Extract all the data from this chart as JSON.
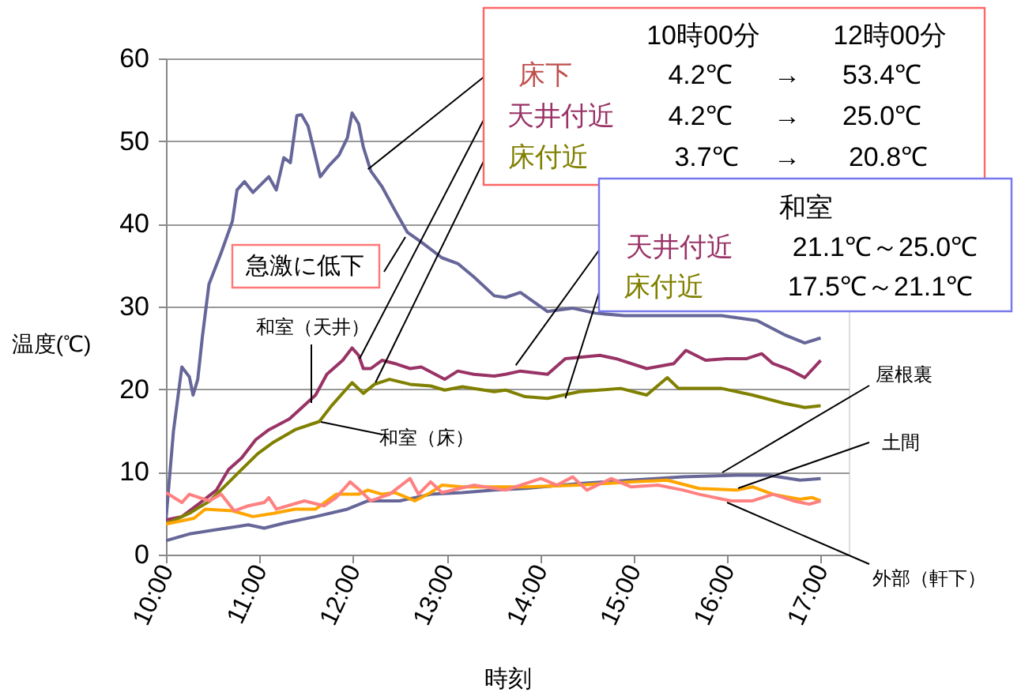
{
  "chart_data": {
    "type": "line",
    "xlabel": "時刻",
    "ylabel": "温度(℃)",
    "xlim": [
      10,
      17.3
    ],
    "ylim": [
      0,
      60
    ],
    "xticks": [
      {
        "value": 10,
        "label": "10:00"
      },
      {
        "value": 11,
        "label": "11:00"
      },
      {
        "value": 12,
        "label": "12:00"
      },
      {
        "value": 13,
        "label": "13:00"
      },
      {
        "value": 14,
        "label": "14:00"
      },
      {
        "value": 15,
        "label": "15:00"
      },
      {
        "value": 16,
        "label": "16:00"
      },
      {
        "value": 17,
        "label": "17:00"
      }
    ],
    "yticks": [
      0,
      10,
      20,
      30,
      40,
      50,
      60
    ],
    "grid": "y",
    "legend": false,
    "line_style": "solid",
    "series": [
      {
        "color": "#666699",
        "x": [
          10,
          10.08,
          10.17,
          10.25,
          10.29,
          10.34,
          10.39,
          10.46,
          10.59,
          10.71,
          10.76,
          10.84,
          10.93,
          11.1,
          11.18,
          11.26,
          11.33,
          11.4,
          11.45,
          11.52,
          11.65,
          11.74,
          11.85,
          11.94,
          11.99,
          12.06,
          12.11,
          12.19,
          12.31,
          12.45,
          12.58,
          12.73,
          12.95,
          13.12,
          13.29,
          13.51,
          13.63,
          13.79,
          14.08,
          14.35,
          14.59,
          14.9,
          15.5,
          15.94,
          16.32,
          16.61,
          16.83,
          17.0
        ],
        "values": [
          4.2,
          14.9,
          22.7,
          21.5,
          19.3,
          21.2,
          26.4,
          32.7,
          36.5,
          40.3,
          44.1,
          45.1,
          43.8,
          45.7,
          44.1,
          48.0,
          47.4,
          53.1,
          53.2,
          51.8,
          45.7,
          47.0,
          48.3,
          50.4,
          53.4,
          52.1,
          49.3,
          46.4,
          44.5,
          41.6,
          39.0,
          37.8,
          35.9,
          35.2,
          33.6,
          31.3,
          31.1,
          31.7,
          29.4,
          29.8,
          29.2,
          28.9,
          28.9,
          28.9,
          28.3,
          26.6,
          25.6,
          26.2
        ]
      },
      {
        "name": "和室（天井）",
        "color": "#993366",
        "x": [
          10,
          10.17,
          10.37,
          10.54,
          10.67,
          10.81,
          10.96,
          11.1,
          11.32,
          11.6,
          11.72,
          11.89,
          11.99,
          12.06,
          12.11,
          12.19,
          12.31,
          12.45,
          12.61,
          12.73,
          12.98,
          13.12,
          13.29,
          13.51,
          13.63,
          13.79,
          14.08,
          14.27,
          14.64,
          14.81,
          15.14,
          15.43,
          15.56,
          15.77,
          15.99,
          16.21,
          16.37,
          16.49,
          16.66,
          16.83,
          17.0
        ],
        "values": [
          4.2,
          4.6,
          6.3,
          7.8,
          10.3,
          11.7,
          13.9,
          15.1,
          16.4,
          19.3,
          21.8,
          23.5,
          25.0,
          24.1,
          22.5,
          22.5,
          23.5,
          23.1,
          22.5,
          22.7,
          21.2,
          22.2,
          21.8,
          21.6,
          21.8,
          22.2,
          21.8,
          23.7,
          24.1,
          23.7,
          22.5,
          23.1,
          24.7,
          23.5,
          23.7,
          23.7,
          24.3,
          23.1,
          22.4,
          21.4,
          23.5
        ]
      },
      {
        "name": "和室（床）",
        "color": "#808000",
        "x": [
          10,
          10.25,
          10.47,
          10.64,
          10.81,
          10.98,
          11.15,
          11.38,
          11.64,
          11.77,
          11.99,
          12.11,
          12.23,
          12.39,
          12.61,
          12.83,
          12.98,
          13.17,
          13.51,
          13.63,
          13.84,
          14.08,
          14.42,
          14.86,
          15.14,
          15.36,
          15.48,
          15.94,
          16.27,
          16.61,
          16.83,
          17.0
        ],
        "values": [
          3.7,
          5.0,
          6.5,
          8.4,
          10.3,
          12.2,
          13.6,
          15.1,
          16.1,
          18.0,
          20.8,
          19.5,
          20.6,
          21.2,
          20.6,
          20.4,
          19.9,
          20.3,
          19.7,
          19.9,
          19.1,
          18.9,
          19.7,
          20.1,
          19.3,
          21.4,
          20.1,
          20.1,
          19.3,
          18.3,
          17.8,
          18.0
        ]
      },
      {
        "name": "屋根裏",
        "color": "#666699",
        "x": [
          10,
          10.25,
          10.59,
          10.76,
          10.88,
          11.05,
          11.26,
          11.6,
          11.94,
          12.16,
          12.5,
          12.83,
          13.17,
          13.51,
          13.84,
          14.42,
          14.97,
          15.53,
          16.1,
          16.44,
          16.78,
          17.0
        ],
        "values": [
          1.7,
          2.5,
          3.1,
          3.4,
          3.6,
          3.2,
          3.8,
          4.6,
          5.5,
          6.5,
          6.5,
          7.3,
          7.5,
          7.8,
          8.0,
          8.6,
          9.0,
          9.4,
          9.6,
          9.6,
          9.0,
          9.2
        ]
      },
      {
        "name": "土間",
        "color": "#ffa500",
        "x": [
          10,
          10.3,
          10.42,
          10.71,
          10.93,
          11.15,
          11.38,
          11.6,
          11.82,
          12.06,
          12.16,
          12.31,
          12.45,
          12.66,
          12.83,
          12.95,
          13.17,
          13.51,
          13.84,
          14.42,
          14.97,
          15.36,
          15.7,
          16.1,
          16.27,
          16.49,
          16.78,
          16.91,
          17.0
        ],
        "values": [
          3.7,
          4.4,
          5.5,
          5.3,
          4.6,
          5.0,
          5.5,
          5.5,
          7.3,
          7.3,
          7.8,
          7.3,
          7.5,
          6.5,
          7.5,
          8.4,
          8.2,
          8.2,
          8.2,
          8.4,
          8.8,
          9.0,
          8.0,
          7.8,
          8.2,
          7.3,
          6.7,
          6.9,
          6.5
        ]
      },
      {
        "name": "外部（軒下）",
        "color": "#ff8080",
        "x": [
          10,
          10.17,
          10.25,
          10.46,
          10.59,
          10.73,
          10.88,
          11.05,
          11.1,
          11.18,
          11.48,
          11.69,
          11.82,
          11.97,
          12.07,
          12.19,
          12.39,
          12.61,
          12.7,
          12.83,
          12.95,
          13.29,
          13.63,
          14.01,
          14.18,
          14.35,
          14.5,
          14.76,
          14.97,
          15.26,
          15.53,
          15.7,
          16.04,
          16.27,
          16.49,
          16.71,
          16.88,
          17.0
        ],
        "values": [
          7.5,
          6.3,
          7.3,
          6.5,
          7.3,
          5.3,
          5.9,
          6.3,
          6.9,
          5.5,
          6.5,
          5.9,
          6.9,
          8.8,
          7.8,
          6.5,
          7.3,
          9.2,
          7.3,
          8.8,
          7.5,
          8.4,
          7.8,
          9.2,
          8.4,
          9.4,
          7.8,
          9.2,
          8.2,
          8.4,
          7.8,
          7.3,
          6.5,
          6.5,
          7.3,
          6.5,
          6.1,
          6.5
        ]
      }
    ],
    "annotations": [
      "10時00分",
      "12時00分",
      {
        "text": "床下",
        "x": 12.16,
        "y": 46.6
      },
      "4.2℃",
      "→",
      "53.4℃",
      {
        "text": "天井付近",
        "x": 12.07,
        "y": 23.7
      },
      "4.2℃",
      "→",
      "25.0℃",
      {
        "text": "床付近",
        "x": 12.24,
        "y": 20.8
      },
      "3.7℃",
      "→",
      "20.8℃",
      "和室",
      {
        "text": "天井付近",
        "x": 13.74,
        "y": 22.9
      },
      "21.1℃～25.0℃",
      {
        "text": "床付近",
        "x": 14.27,
        "y": 18.9
      },
      "17.5℃～21.1℃",
      {
        "text": "急激に低下",
        "x": 12.56,
        "y": 38.4
      }
    ]
  }
}
